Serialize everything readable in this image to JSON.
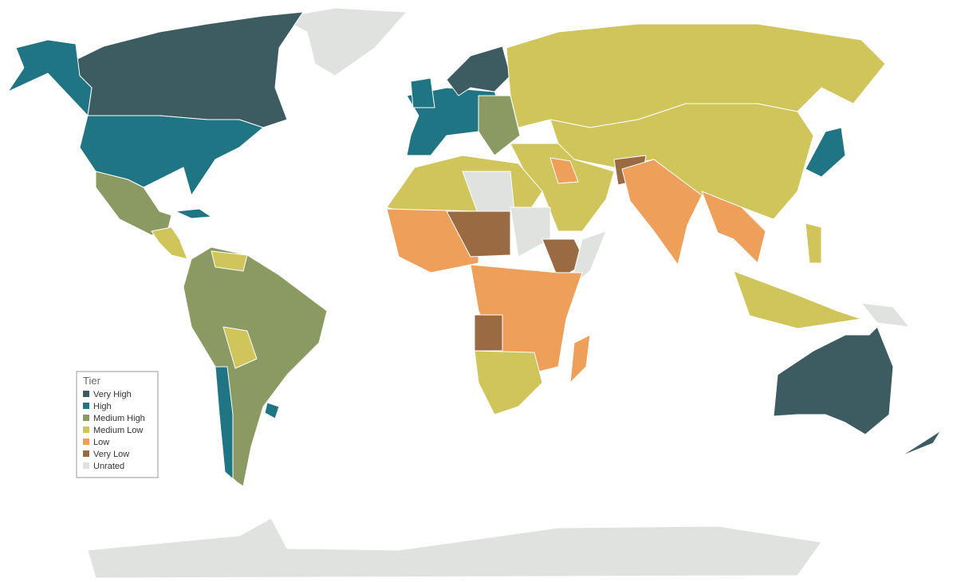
{
  "legend": {
    "title": "Tier",
    "items": [
      {
        "label": "Very High",
        "color": "#3d5c61"
      },
      {
        "label": "High",
        "color": "#1f7584"
      },
      {
        "label": "Medium High",
        "color": "#8a9a62"
      },
      {
        "label": "Medium Low",
        "color": "#cfc55a"
      },
      {
        "label": "Low",
        "color": "#ee9f5a"
      },
      {
        "label": "Very Low",
        "color": "#9a6a42"
      },
      {
        "label": "Unrated",
        "color": "#e0e2e0"
      }
    ]
  }
}
